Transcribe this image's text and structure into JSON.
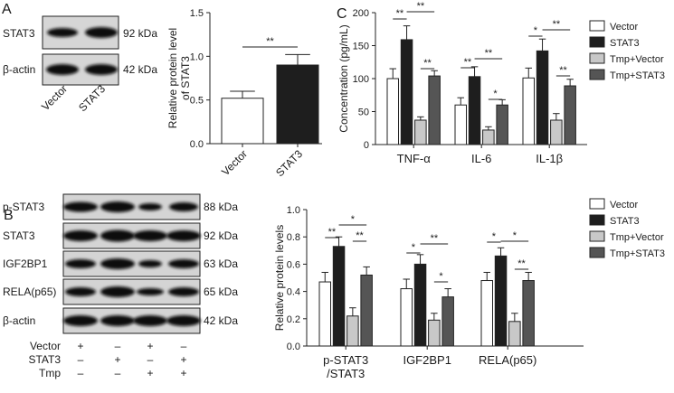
{
  "panels": {
    "A": "A",
    "B": "B",
    "C": "C"
  },
  "colors": {
    "Vector": "#ffffff",
    "STAT3": "#1e1e1e",
    "Tmp+Vector": "#c8c8c8",
    "Tmp+STAT3": "#555555"
  },
  "blot_a": {
    "rows": [
      {
        "label": "STAT3",
        "kda": "92 kDa"
      },
      {
        "label": "β-actin",
        "kda": "42 kDa"
      }
    ],
    "lanes": [
      "Vector",
      "STAT3"
    ]
  },
  "blot_b": {
    "rows": [
      {
        "label": "p-STAT3",
        "kda": "88 kDa"
      },
      {
        "label": "STAT3",
        "kda": "92 kDa"
      },
      {
        "label": "IGF2BP1",
        "kda": "63 kDa"
      },
      {
        "label": "RELA(p65)",
        "kda": "65 kDa"
      },
      {
        "label": "β-actin",
        "kda": "42 kDa"
      }
    ],
    "treat": [
      {
        "label": "Vector",
        "marks": [
          "+",
          "–",
          "+",
          "–"
        ]
      },
      {
        "label": "STAT3",
        "marks": [
          "–",
          "+",
          "–",
          "+"
        ]
      },
      {
        "label": "Tmp",
        "marks": [
          "–",
          "–",
          "+",
          "+"
        ]
      }
    ]
  },
  "chart_data": [
    {
      "type": "bar",
      "id": "A",
      "categories": [
        "Vector",
        "STAT3"
      ],
      "values": [
        0.52,
        0.9
      ],
      "errors": [
        0.08,
        0.12
      ],
      "ylabel": "Relative protein level of STAT3",
      "ylim": [
        0,
        1.5
      ],
      "yticks": [
        "0.0",
        "0.5",
        "1.0",
        "1.5"
      ],
      "significance": [
        "**"
      ]
    },
    {
      "type": "bar",
      "id": "C",
      "categories": [
        "TNF-α",
        "IL-6",
        "IL-1β"
      ],
      "series": [
        {
          "name": "Vector",
          "values": [
            100,
            60,
            101
          ],
          "errors": [
            15,
            11,
            15
          ]
        },
        {
          "name": "STAT3",
          "values": [
            159,
            103,
            142
          ],
          "errors": [
            21,
            15,
            18
          ]
        },
        {
          "name": "Tmp+Vector",
          "values": [
            37,
            22,
            37
          ],
          "errors": [
            5,
            5,
            10
          ]
        },
        {
          "name": "Tmp+STAT3",
          "values": [
            104,
            60,
            89
          ],
          "errors": [
            8,
            8,
            10
          ]
        }
      ],
      "ylabel": "Concentration (pg/mL)",
      "ylim": [
        0,
        200
      ],
      "yticks": [
        "0",
        "50",
        "100",
        "150",
        "200"
      ],
      "legend": "right",
      "significance": [
        "**",
        "**",
        "**",
        "**",
        "**",
        "*",
        "*",
        "**",
        "**"
      ]
    },
    {
      "type": "bar",
      "id": "B",
      "categories": [
        "p-STAT3\n/STAT3",
        "IGF2BP1",
        "RELA(p65)"
      ],
      "series": [
        {
          "name": "Vector",
          "values": [
            0.47,
            0.42,
            0.48
          ],
          "errors": [
            0.07,
            0.07,
            0.06
          ]
        },
        {
          "name": "STAT3",
          "values": [
            0.73,
            0.6,
            0.66
          ],
          "errors": [
            0.07,
            0.07,
            0.06
          ]
        },
        {
          "name": "Tmp+Vector",
          "values": [
            0.22,
            0.19,
            0.18
          ],
          "errors": [
            0.06,
            0.05,
            0.06
          ]
        },
        {
          "name": "Tmp+STAT3",
          "values": [
            0.52,
            0.36,
            0.48
          ],
          "errors": [
            0.06,
            0.06,
            0.06
          ]
        }
      ],
      "ylabel": "Relative protein levels",
      "ylim": [
        0,
        1.0
      ],
      "yticks": [
        "0.0",
        "0.2",
        "0.4",
        "0.6",
        "0.8",
        "1.0"
      ],
      "legend": "right",
      "significance": [
        "**",
        "*",
        "**",
        "*",
        "**",
        "*",
        "*",
        "*",
        "**"
      ]
    }
  ]
}
